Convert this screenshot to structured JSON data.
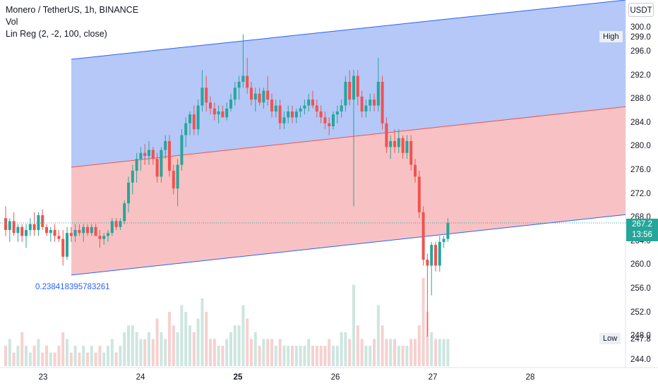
{
  "header": {
    "title": "Monero / TetherUS, 1h, BINANCE",
    "volume_label": "Vol",
    "indicator_label": "Lin Reg (2, -2, 100, close)"
  },
  "price_axis": {
    "unit": "USDT",
    "ticks": [
      "244.0",
      "248.0",
      "252.0",
      "256.0",
      "260.0",
      "264.0",
      "268.0",
      "272.0",
      "276.0",
      "280.0",
      "284.0",
      "288.0",
      "292.0",
      "296.0",
      "300.0"
    ]
  },
  "time_axis": {
    "ticks": [
      "23",
      "24",
      "25",
      "26",
      "27",
      "28"
    ],
    "bold_tick": "25"
  },
  "markers": {
    "high_label": "High",
    "high_value": "299.0",
    "low_label": "Low",
    "low_value": "247.8",
    "last_price": "267.2",
    "countdown": "13:56"
  },
  "linreg": {
    "coefficient": "0.238418395783261",
    "upper_start": 294.8,
    "upper_end": 304.8,
    "mid_start": 276.6,
    "mid_end": 286.8,
    "lower_start": 258.4,
    "lower_end": 268.6
  },
  "colors": {
    "up": "#26a69a",
    "down": "#ef5350",
    "upper_fill": "#b5c8f8",
    "lower_fill": "#f8c2c4",
    "band_line": "#2962ff",
    "mid_line": "#ef5350",
    "vol_up": "#cde6df",
    "vol_down": "#f6d0d0",
    "last_price_bg": "#26a69a"
  },
  "chart_data": {
    "type": "candlestick",
    "symbol": "XMRUSDT",
    "interval": "1h",
    "x_start_hour": 0,
    "series": [
      {
        "o": 268,
        "h": 270,
        "l": 265,
        "c": 266
      },
      {
        "o": 266,
        "h": 268,
        "l": 264,
        "c": 267.5
      },
      {
        "o": 267.5,
        "h": 269,
        "l": 265,
        "c": 265.5
      },
      {
        "o": 265.5,
        "h": 267,
        "l": 264,
        "c": 266.5
      },
      {
        "o": 266.5,
        "h": 267,
        "l": 264,
        "c": 265
      },
      {
        "o": 265,
        "h": 267,
        "l": 263,
        "c": 266
      },
      {
        "o": 266,
        "h": 268,
        "l": 265,
        "c": 267
      },
      {
        "o": 267,
        "h": 269,
        "l": 265,
        "c": 266
      },
      {
        "o": 266,
        "h": 269,
        "l": 265,
        "c": 268.5
      },
      {
        "o": 268.5,
        "h": 269.5,
        "l": 266,
        "c": 266.5
      },
      {
        "o": 266.5,
        "h": 267,
        "l": 265,
        "c": 265.5
      },
      {
        "o": 265.5,
        "h": 266.5,
        "l": 264,
        "c": 266
      },
      {
        "o": 266,
        "h": 267,
        "l": 264,
        "c": 265
      },
      {
        "o": 265,
        "h": 266,
        "l": 264,
        "c": 264.5
      },
      {
        "o": 264.5,
        "h": 266,
        "l": 260,
        "c": 261.5
      },
      {
        "o": 261.5,
        "h": 266.5,
        "l": 261,
        "c": 265.5
      },
      {
        "o": 265.5,
        "h": 266.5,
        "l": 264,
        "c": 265
      },
      {
        "o": 265,
        "h": 267,
        "l": 264,
        "c": 266
      },
      {
        "o": 266,
        "h": 267,
        "l": 265,
        "c": 265.5
      },
      {
        "o": 265.5,
        "h": 267,
        "l": 264,
        "c": 266.5
      },
      {
        "o": 266.5,
        "h": 267,
        "l": 265,
        "c": 265.5
      },
      {
        "o": 265.5,
        "h": 267,
        "l": 265,
        "c": 266.5
      },
      {
        "o": 266.5,
        "h": 267,
        "l": 265,
        "c": 265
      },
      {
        "o": 265,
        "h": 266,
        "l": 263,
        "c": 264.5
      },
      {
        "o": 264.5,
        "h": 265.5,
        "l": 263.5,
        "c": 265
      },
      {
        "o": 265,
        "h": 266,
        "l": 264,
        "c": 265.5
      },
      {
        "o": 265.5,
        "h": 268,
        "l": 265,
        "c": 267.5
      },
      {
        "o": 267.5,
        "h": 268,
        "l": 266,
        "c": 266.5
      },
      {
        "o": 266.5,
        "h": 268,
        "l": 266,
        "c": 267.5
      },
      {
        "o": 267.5,
        "h": 271,
        "l": 267,
        "c": 270.5
      },
      {
        "o": 270.5,
        "h": 275,
        "l": 269,
        "c": 274
      },
      {
        "o": 274,
        "h": 277,
        "l": 272,
        "c": 276
      },
      {
        "o": 276,
        "h": 279,
        "l": 274,
        "c": 278
      },
      {
        "o": 278,
        "h": 280,
        "l": 276,
        "c": 279
      },
      {
        "o": 279,
        "h": 280.5,
        "l": 277,
        "c": 278.5
      },
      {
        "o": 278.5,
        "h": 281,
        "l": 277,
        "c": 279.5
      },
      {
        "o": 279.5,
        "h": 280,
        "l": 277,
        "c": 278
      },
      {
        "o": 278,
        "h": 279,
        "l": 274,
        "c": 275
      },
      {
        "o": 275,
        "h": 280,
        "l": 274,
        "c": 279.5
      },
      {
        "o": 279.5,
        "h": 282,
        "l": 278,
        "c": 281
      },
      {
        "o": 281,
        "h": 282,
        "l": 275,
        "c": 276
      },
      {
        "o": 276,
        "h": 277,
        "l": 272,
        "c": 273
      },
      {
        "o": 273,
        "h": 278,
        "l": 270,
        "c": 277
      },
      {
        "o": 277,
        "h": 283,
        "l": 276,
        "c": 282
      },
      {
        "o": 282,
        "h": 285,
        "l": 280,
        "c": 284
      },
      {
        "o": 284,
        "h": 286,
        "l": 282,
        "c": 285.5
      },
      {
        "o": 285.5,
        "h": 287,
        "l": 282,
        "c": 283
      },
      {
        "o": 283,
        "h": 288,
        "l": 282,
        "c": 287
      },
      {
        "o": 287,
        "h": 293,
        "l": 286,
        "c": 290
      },
      {
        "o": 290,
        "h": 292,
        "l": 286,
        "c": 287.5
      },
      {
        "o": 287.5,
        "h": 288.5,
        "l": 285.5,
        "c": 286.5
      },
      {
        "o": 286.5,
        "h": 287.5,
        "l": 284.5,
        "c": 285.5
      },
      {
        "o": 285.5,
        "h": 287,
        "l": 284,
        "c": 286
      },
      {
        "o": 286,
        "h": 287,
        "l": 285,
        "c": 285
      },
      {
        "o": 285,
        "h": 287.5,
        "l": 284.5,
        "c": 286.5
      },
      {
        "o": 286.5,
        "h": 289,
        "l": 286,
        "c": 288
      },
      {
        "o": 288,
        "h": 291,
        "l": 287,
        "c": 290
      },
      {
        "o": 290,
        "h": 292,
        "l": 288,
        "c": 291
      },
      {
        "o": 291,
        "h": 299,
        "l": 290,
        "c": 292
      },
      {
        "o": 292,
        "h": 295,
        "l": 289,
        "c": 290
      },
      {
        "o": 290,
        "h": 291,
        "l": 287,
        "c": 288
      },
      {
        "o": 288,
        "h": 290,
        "l": 286,
        "c": 289
      },
      {
        "o": 289,
        "h": 290,
        "l": 287,
        "c": 287.5
      },
      {
        "o": 287.5,
        "h": 290,
        "l": 286.5,
        "c": 289.5
      },
      {
        "o": 289.5,
        "h": 292,
        "l": 287,
        "c": 288
      },
      {
        "o": 288,
        "h": 289,
        "l": 285,
        "c": 286
      },
      {
        "o": 286,
        "h": 288,
        "l": 285,
        "c": 287
      },
      {
        "o": 287,
        "h": 288,
        "l": 283,
        "c": 284
      },
      {
        "o": 284,
        "h": 286,
        "l": 283,
        "c": 285
      },
      {
        "o": 285,
        "h": 287,
        "l": 284,
        "c": 286
      },
      {
        "o": 286,
        "h": 287,
        "l": 284,
        "c": 285
      },
      {
        "o": 285,
        "h": 286.5,
        "l": 284,
        "c": 286
      },
      {
        "o": 286,
        "h": 287,
        "l": 285,
        "c": 286.5
      },
      {
        "o": 286.5,
        "h": 288,
        "l": 285.5,
        "c": 287
      },
      {
        "o": 287,
        "h": 289,
        "l": 286,
        "c": 288
      },
      {
        "o": 288,
        "h": 289.5,
        "l": 286.5,
        "c": 287
      },
      {
        "o": 287,
        "h": 288,
        "l": 285,
        "c": 286
      },
      {
        "o": 286,
        "h": 287,
        "l": 284,
        "c": 285
      },
      {
        "o": 285,
        "h": 286,
        "l": 283,
        "c": 284
      },
      {
        "o": 284,
        "h": 285,
        "l": 282,
        "c": 283.5
      },
      {
        "o": 283.5,
        "h": 286,
        "l": 283,
        "c": 285.5
      },
      {
        "o": 285.5,
        "h": 287,
        "l": 284,
        "c": 286
      },
      {
        "o": 286,
        "h": 288,
        "l": 285,
        "c": 287
      },
      {
        "o": 287,
        "h": 292,
        "l": 286,
        "c": 291
      },
      {
        "o": 291,
        "h": 293,
        "l": 287,
        "c": 288
      },
      {
        "o": 288,
        "h": 293,
        "l": 270,
        "c": 292
      },
      {
        "o": 292,
        "h": 293,
        "l": 287,
        "c": 288.5
      },
      {
        "o": 288.5,
        "h": 289.5,
        "l": 285,
        "c": 286
      },
      {
        "o": 286,
        "h": 288,
        "l": 285,
        "c": 287
      },
      {
        "o": 287,
        "h": 289,
        "l": 286,
        "c": 288
      },
      {
        "o": 288,
        "h": 289,
        "l": 286,
        "c": 287
      },
      {
        "o": 287,
        "h": 295,
        "l": 286,
        "c": 291
      },
      {
        "o": 291,
        "h": 292,
        "l": 283,
        "c": 284
      },
      {
        "o": 284,
        "h": 285,
        "l": 279,
        "c": 280
      },
      {
        "o": 280,
        "h": 282,
        "l": 278,
        "c": 281
      },
      {
        "o": 281,
        "h": 283,
        "l": 279,
        "c": 280
      },
      {
        "o": 280,
        "h": 283,
        "l": 279,
        "c": 281.5
      },
      {
        "o": 281.5,
        "h": 282,
        "l": 278,
        "c": 279
      },
      {
        "o": 279,
        "h": 282,
        "l": 278,
        "c": 281
      },
      {
        "o": 281,
        "h": 282,
        "l": 276,
        "c": 277
      },
      {
        "o": 277,
        "h": 278,
        "l": 274,
        "c": 275
      },
      {
        "o": 275,
        "h": 276,
        "l": 268,
        "c": 269
      },
      {
        "o": 269,
        "h": 270,
        "l": 260,
        "c": 261
      },
      {
        "o": 261,
        "h": 262,
        "l": 248,
        "c": 260
      },
      {
        "o": 260,
        "h": 264,
        "l": 255,
        "c": 263.5
      },
      {
        "o": 263.5,
        "h": 264,
        "l": 259,
        "c": 260
      },
      {
        "o": 260,
        "h": 265,
        "l": 259,
        "c": 264
      },
      {
        "o": 264,
        "h": 265,
        "l": 263,
        "c": 264.5
      },
      {
        "o": 264.5,
        "h": 268,
        "l": 264,
        "c": 267.2
      }
    ],
    "volume": [
      3,
      4,
      2,
      3,
      5,
      3,
      2,
      3,
      4,
      2,
      3,
      2,
      2,
      3,
      5,
      4,
      2,
      3,
      2,
      3,
      2,
      3,
      2,
      3,
      2,
      3,
      4,
      2,
      3,
      5,
      6,
      6,
      5,
      4,
      4,
      5,
      4,
      7,
      5,
      4,
      8,
      6,
      5,
      9,
      8,
      6,
      5,
      7,
      10,
      8,
      4,
      4,
      3,
      3,
      4,
      5,
      6,
      6,
      9,
      7,
      4,
      5,
      3,
      4,
      4,
      4,
      3,
      4,
      3,
      3,
      3,
      3,
      3,
      3,
      4,
      3,
      3,
      3,
      3,
      4,
      3,
      3,
      5,
      5,
      4,
      12,
      6,
      4,
      3,
      3,
      4,
      9,
      6,
      4,
      4,
      4,
      3,
      3,
      3,
      4,
      4,
      6,
      13,
      8,
      5,
      4,
      4,
      4,
      4,
      3
    ],
    "ylim": [
      242.8,
      304.8
    ]
  }
}
